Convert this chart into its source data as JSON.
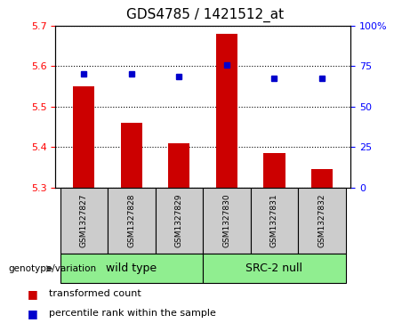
{
  "title": "GDS4785 / 1421512_at",
  "samples": [
    "GSM1327827",
    "GSM1327828",
    "GSM1327829",
    "GSM1327830",
    "GSM1327831",
    "GSM1327832"
  ],
  "bar_values": [
    5.55,
    5.46,
    5.41,
    5.68,
    5.385,
    5.345
  ],
  "percentile_values": [
    70.5,
    70.0,
    68.5,
    76.0,
    67.5,
    67.5
  ],
  "ylim_left": [
    5.3,
    5.7
  ],
  "ylim_right": [
    0,
    100
  ],
  "yticks_left": [
    5.3,
    5.4,
    5.5,
    5.6,
    5.7
  ],
  "yticks_right": [
    0,
    25,
    50,
    75,
    100
  ],
  "ytick_labels_right": [
    "0",
    "25",
    "50",
    "75",
    "100%"
  ],
  "bar_color": "#cc0000",
  "point_color": "#0000cc",
  "group1_label": "wild type",
  "group2_label": "SRC-2 null",
  "group1_color": "#90ee90",
  "group2_color": "#90ee90",
  "genotype_label": "genotype/variation",
  "legend_bar_label": "transformed count",
  "legend_point_label": "percentile rank within the sample",
  "plot_bg": "#ffffff",
  "tick_bg": "#cccccc"
}
